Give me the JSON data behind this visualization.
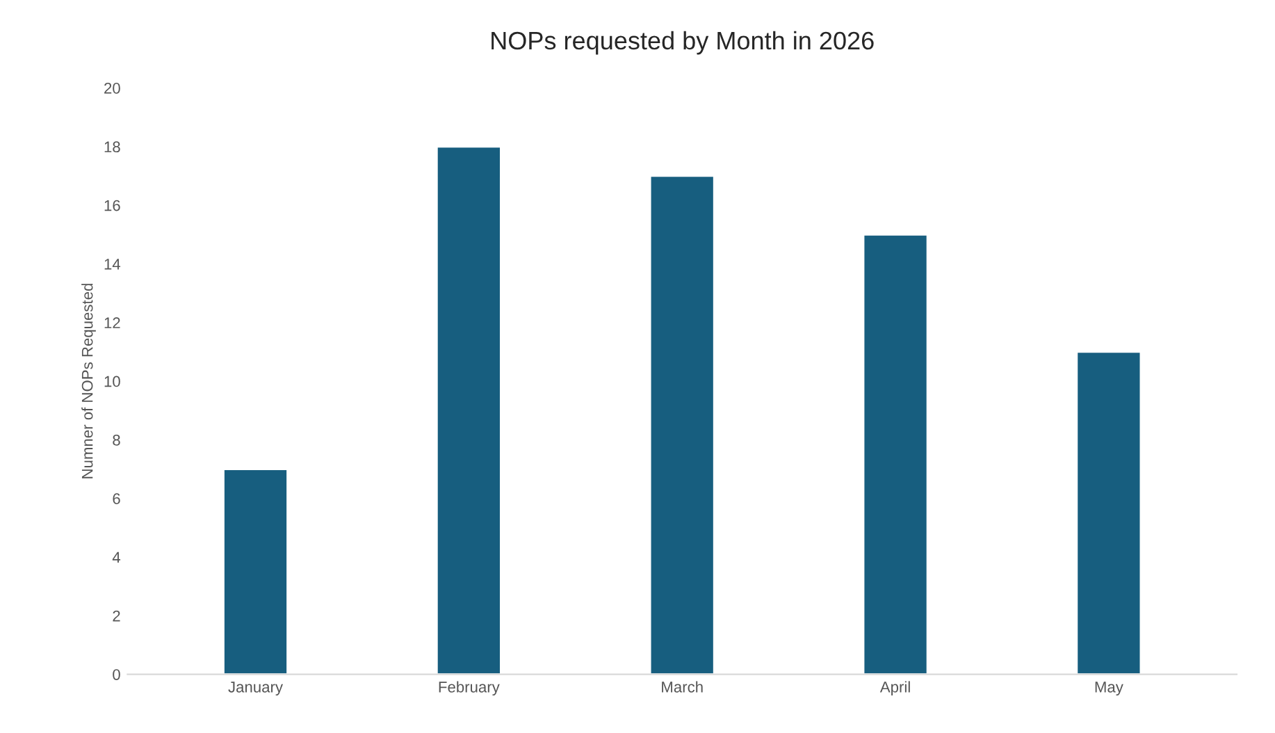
{
  "chart_data": {
    "type": "bar",
    "title": "NOPs requested by Month in 2026",
    "ylabel": "Numner of NOPs Requested",
    "categories": [
      "January",
      "February",
      "March",
      "April",
      "May"
    ],
    "values": [
      7,
      18,
      17,
      15,
      11
    ],
    "color": "#175e7f",
    "ylim": [
      0,
      20
    ],
    "yticks": [
      0,
      2,
      4,
      6,
      8,
      10,
      12,
      14,
      16,
      18,
      20
    ],
    "grid": false
  }
}
